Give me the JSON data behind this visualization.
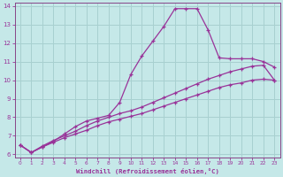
{
  "xlabel": "Windchill (Refroidissement éolien,°C)",
  "background_color": "#c5e8e8",
  "grid_color": "#a8d0d0",
  "line_color": "#993399",
  "spine_color": "#884488",
  "x_values": [
    0,
    1,
    2,
    3,
    4,
    5,
    6,
    7,
    8,
    9,
    10,
    11,
    12,
    13,
    14,
    15,
    16,
    17,
    18,
    19,
    20,
    21,
    22,
    23
  ],
  "curve1": [
    6.5,
    6.1,
    6.4,
    6.7,
    7.1,
    7.5,
    7.8,
    7.95,
    8.1,
    8.8,
    10.3,
    11.3,
    12.1,
    12.9,
    13.85,
    13.85,
    13.85,
    12.7,
    11.2,
    11.15,
    11.15,
    11.15,
    11.0,
    10.7
  ],
  "curve2": [
    6.5,
    6.1,
    6.45,
    6.75,
    7.0,
    7.25,
    7.55,
    7.8,
    8.0,
    8.2,
    8.35,
    8.55,
    8.8,
    9.05,
    9.3,
    9.55,
    9.8,
    10.05,
    10.25,
    10.45,
    10.6,
    10.75,
    10.8,
    10.0
  ],
  "curve3": [
    6.5,
    6.1,
    6.4,
    6.65,
    6.9,
    7.1,
    7.3,
    7.55,
    7.75,
    7.9,
    8.05,
    8.2,
    8.4,
    8.6,
    8.8,
    9.0,
    9.2,
    9.4,
    9.6,
    9.75,
    9.85,
    10.0,
    10.05,
    10.0
  ],
  "ylim": [
    6,
    14
  ],
  "xlim": [
    -0.5,
    23.5
  ],
  "yticks": [
    6,
    7,
    8,
    9,
    10,
    11,
    12,
    13,
    14
  ],
  "xticks": [
    0,
    1,
    2,
    3,
    4,
    5,
    6,
    7,
    8,
    9,
    10,
    11,
    12,
    13,
    14,
    15,
    16,
    17,
    18,
    19,
    20,
    21,
    22,
    23
  ]
}
